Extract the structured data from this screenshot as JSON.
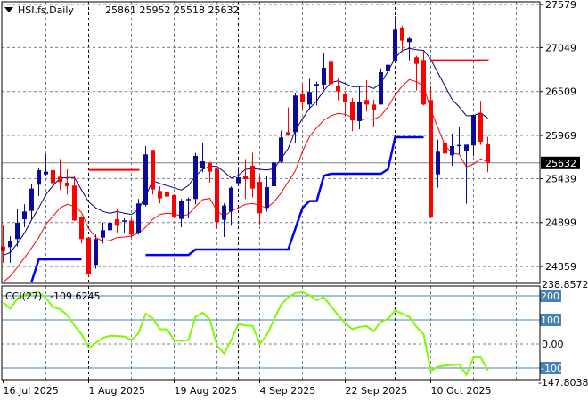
{
  "header": {
    "symbol_timeframe": "HSI.fs,Daily",
    "ohlc_readout": "25861 25952 25518 25632",
    "menu_icon": "triangle-down-icon"
  },
  "colors": {
    "bull": "#0a0a9c",
    "bear": "#ff0000",
    "ma_fast": "#000080",
    "ma_slow": "#ff0000",
    "step_line": "#0000ff",
    "level_line": "#ff0000",
    "cci_line": "#7cfc00",
    "cci_levels": "#4682b4",
    "grid": "#708090",
    "separator": "#000000",
    "price_tag_bg": "#000000"
  },
  "chart_data": [
    {
      "type": "candlestick",
      "title": "HSI.fs,Daily",
      "y_axis": {
        "ticks": [
          27579,
          27049,
          26509,
          25969,
          25439,
          24899,
          24359
        ],
        "range": [
          24250,
          27620
        ],
        "current_price": 25632,
        "current_price_label": "25632"
      },
      "x_ticks": [
        {
          "bar": 0,
          "label": "16 Jul 2025"
        },
        {
          "bar": 12,
          "label": "1 Aug 2025"
        },
        {
          "bar": 24,
          "label": "19 Aug 2025"
        },
        {
          "bar": 36,
          "label": "4 Sep 2025"
        },
        {
          "bar": 48,
          "label": "22 Sep 2025"
        },
        {
          "bar": 60,
          "label": "10 Oct 2025"
        }
      ],
      "period_separators_at_bar": [
        12,
        33,
        55
      ],
      "grid": true,
      "candles_ohlc": [
        [
          24604,
          24860,
          24404,
          24550
        ],
        [
          24597,
          24732,
          24404,
          24677
        ],
        [
          24696,
          25061,
          24604,
          24896
        ],
        [
          24940,
          25123,
          24842,
          25035
        ],
        [
          25042,
          25371,
          24933,
          25316
        ],
        [
          25364,
          25572,
          25225,
          25543
        ],
        [
          25491,
          25743,
          25480,
          25524
        ],
        [
          25543,
          25572,
          25243,
          25382
        ],
        [
          25462,
          25681,
          25298,
          25397
        ],
        [
          25389,
          25554,
          25243,
          25345
        ],
        [
          25353,
          25480,
          24920,
          24926
        ],
        [
          24970,
          24975,
          24641,
          24696
        ],
        [
          24714,
          24714,
          24240,
          24269
        ],
        [
          24378,
          24751,
          24331,
          24696
        ],
        [
          24714,
          24896,
          24641,
          24805
        ],
        [
          24805,
          24951,
          24714,
          24896
        ],
        [
          24940,
          25068,
          24769,
          24860
        ],
        [
          24915,
          24951,
          24769,
          24926
        ],
        [
          24922,
          24951,
          24714,
          24751
        ],
        [
          24769,
          25189,
          24751,
          25134
        ],
        [
          25116,
          25838,
          25097,
          25736
        ],
        [
          25791,
          25791,
          25243,
          25305
        ],
        [
          25287,
          25342,
          25134,
          25196
        ],
        [
          25280,
          25451,
          25134,
          25218
        ],
        [
          25236,
          25243,
          24951,
          24962
        ],
        [
          24944,
          25189,
          24842,
          25159
        ],
        [
          25178,
          25207,
          24951,
          25189
        ],
        [
          25189,
          25754,
          25123,
          25718
        ],
        [
          25572,
          25871,
          25517,
          25652
        ],
        [
          25634,
          25645,
          25389,
          25524
        ],
        [
          25561,
          25572,
          24824,
          24904
        ],
        [
          24933,
          25134,
          24721,
          25108
        ],
        [
          25035,
          25342,
          24860,
          25327
        ],
        [
          25382,
          25583,
          25371,
          25455
        ],
        [
          25473,
          25681,
          25189,
          25433
        ],
        [
          25597,
          25754,
          25207,
          25316
        ],
        [
          25400,
          25480,
          24867,
          25013
        ],
        [
          25079,
          25473,
          25035,
          25334
        ],
        [
          25345,
          25640,
          25334,
          25638
        ],
        [
          25645,
          26028,
          25634,
          25944
        ],
        [
          26010,
          26313,
          25962,
          25981
        ],
        [
          26010,
          26495,
          25882,
          26459
        ],
        [
          26484,
          26594,
          26284,
          26375
        ],
        [
          26349,
          26667,
          26291,
          26503
        ],
        [
          26576,
          26630,
          26338,
          26601
        ],
        [
          26594,
          26977,
          26539,
          26802
        ],
        [
          26875,
          27061,
          26331,
          26601
        ],
        [
          26576,
          26674,
          26400,
          26510
        ],
        [
          26473,
          26503,
          26211,
          26375
        ],
        [
          26386,
          26429,
          26021,
          26156
        ],
        [
          26145,
          26576,
          26046,
          26386
        ],
        [
          26404,
          26649,
          26265,
          26349
        ],
        [
          26349,
          26411,
          26072,
          26284
        ],
        [
          26349,
          26795,
          26349,
          26747
        ],
        [
          26758,
          26904,
          26601,
          26838
        ],
        [
          26886,
          27433,
          26868,
          27269
        ],
        [
          27295,
          27313,
          26995,
          27134
        ],
        [
          27116,
          27178,
          26893,
          27160
        ],
        [
          26930,
          26948,
          26521,
          26849
        ],
        [
          26897,
          27014,
          26338,
          26349
        ],
        [
          26404,
          26576,
          24959,
          24959
        ],
        [
          25491,
          25919,
          25327,
          25769
        ],
        [
          25871,
          26075,
          25316,
          25747
        ],
        [
          25725,
          25991,
          25597,
          25838
        ],
        [
          25846,
          26072,
          25736,
          25853
        ],
        [
          25780,
          25856,
          25130,
          25856
        ],
        [
          25846,
          26221,
          25718,
          26221
        ],
        [
          26240,
          26393,
          25853,
          25893
        ],
        [
          25861,
          25952,
          25518,
          25632
        ]
      ],
      "ma_fast": [
        24495,
        24532,
        24641,
        24769,
        24933,
        25079,
        25243,
        25353,
        25444,
        25451,
        25451,
        25298,
        25152,
        25079,
        25035,
        25013,
        25035,
        25013,
        24999,
        25061,
        25225,
        25415,
        25378,
        25353,
        25327,
        25298,
        25353,
        25473,
        25553,
        25590,
        25590,
        25524,
        25444,
        25480,
        25553,
        25561,
        25553,
        25546,
        25561,
        25681,
        25809,
        26028,
        26174,
        26302,
        26393,
        26521,
        26619,
        26641,
        26605,
        26568,
        26568,
        26576,
        26546,
        26612,
        26758,
        26922,
        27014,
        27039,
        27024,
        27014,
        26904,
        26740,
        26576,
        26411,
        26320,
        26211,
        26211,
        26247,
        26181
      ],
      "ma_slow": [
        24166,
        24239,
        24349,
        24466,
        24586,
        24714,
        24878,
        24977,
        25079,
        25123,
        25097,
        25024,
        24824,
        24714,
        24670,
        24677,
        24714,
        24721,
        24732,
        24769,
        24842,
        24940,
        24999,
        25013,
        25006,
        24977,
        24999,
        25097,
        25181,
        25196,
        25042,
        24977,
        25042,
        25079,
        25123,
        25134,
        25108,
        25079,
        25152,
        25262,
        25400,
        25535,
        25772,
        25955,
        26065,
        26156,
        26211,
        26240,
        26229,
        26192,
        26156,
        26174,
        26167,
        26211,
        26320,
        26466,
        26576,
        26656,
        26630,
        26576,
        26284,
        26065,
        25846,
        25754,
        25736,
        25583,
        25619,
        25681,
        25645
      ],
      "step_line": [
        null,
        null,
        null,
        null,
        24170,
        24447,
        24447,
        24447,
        24447,
        24447,
        24447,
        24447,
        null,
        null,
        null,
        null,
        null,
        null,
        null,
        null,
        24501,
        24501,
        24501,
        24501,
        24501,
        24501,
        24501,
        24568,
        24568,
        24568,
        24568,
        24568,
        24568,
        24568,
        24568,
        24568,
        24568,
        24568,
        24568,
        24568,
        24568,
        24824,
        25079,
        25163,
        25163,
        25473,
        25499,
        25499,
        25499,
        25499,
        25499,
        25499,
        25499,
        25499,
        25553,
        25947,
        25947,
        25947,
        25947,
        25947,
        null,
        null,
        null,
        null,
        null,
        null,
        null,
        null,
        null
      ],
      "levels": [
        {
          "price": 25546,
          "from_bar": 12,
          "to_bar": 19
        },
        {
          "price": 26893,
          "from_bar": 60,
          "to_bar": 68
        }
      ]
    },
    {
      "type": "line",
      "title": "CCI(27)",
      "last_value_label": "-109.6245",
      "range": [
        -147.8038,
        238.8572
      ],
      "range_labels": [
        "238.8572",
        "-147.8038"
      ],
      "levels": [
        {
          "value": 200,
          "label": "200"
        },
        {
          "value": 100,
          "label": "100"
        },
        {
          "value": 0,
          "label": "0.00"
        },
        {
          "value": -100,
          "label": "-100"
        }
      ],
      "values": [
        173,
        147,
        188,
        204,
        210,
        215,
        191,
        153,
        145,
        120,
        77,
        40,
        -16,
        4,
        26,
        34,
        33,
        31,
        16,
        45,
        126,
        106,
        61,
        61,
        15,
        13,
        16,
        114,
        130,
        102,
        -6,
        -40,
        16,
        83,
        77,
        75,
        1,
        37,
        102,
        163,
        194,
        212,
        215,
        202,
        182,
        194,
        157,
        120,
        86,
        61,
        71,
        74,
        53,
        92,
        104,
        139,
        126,
        112,
        71,
        40,
        -113,
        -94,
        -90,
        -87,
        -85,
        -129,
        -55,
        -55,
        -109.6245
      ]
    }
  ]
}
